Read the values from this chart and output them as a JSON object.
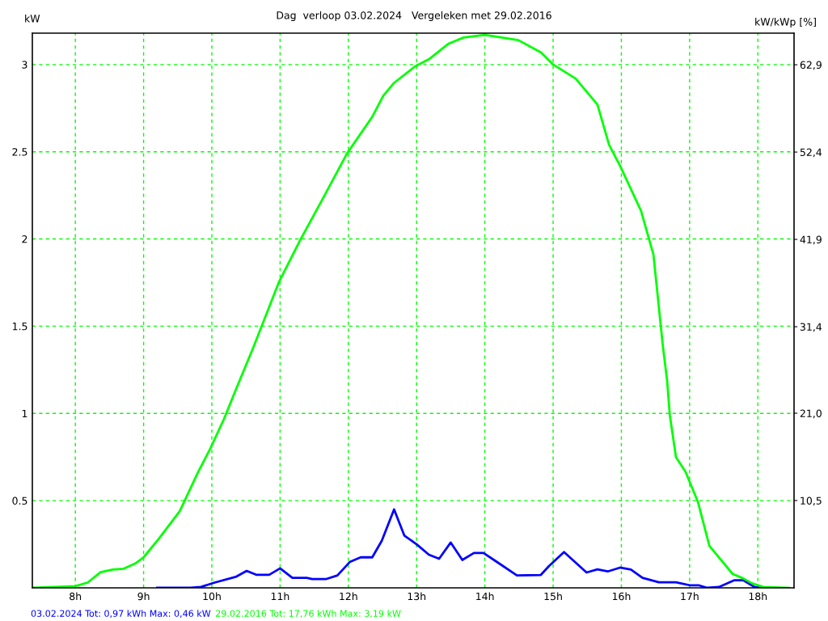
{
  "chart_data": {
    "type": "line",
    "title": "Dag  verloop 03.02.2024   Vergeleken met 29.02.2016",
    "ylabel": "kW",
    "y2label": "kW/kWp [%]",
    "series": [
      {
        "name": "03.02.2024 Tot: 0,97 kWh Max: 0,46 kW",
        "color": "#0000ff",
        "x": [
          9.2,
          9.69,
          9.84,
          10.04,
          10.35,
          10.51,
          10.65,
          10.84,
          11.0,
          11.18,
          11.39,
          11.47,
          11.67,
          11.84,
          12.02,
          12.18,
          12.35,
          12.49,
          12.67,
          12.82,
          13.0,
          13.18,
          13.33,
          13.5,
          13.67,
          13.84,
          13.98,
          14.16,
          14.47,
          14.82,
          14.94,
          15.16,
          15.49,
          15.65,
          15.8,
          15.98,
          16.14,
          16.31,
          16.55,
          16.8,
          17.0,
          17.14,
          17.26,
          17.43,
          17.65,
          17.79,
          17.95,
          18.07
        ],
        "values": [
          0,
          0,
          0.005,
          0.03,
          0.063,
          0.097,
          0.075,
          0.075,
          0.112,
          0.057,
          0.057,
          0.05,
          0.05,
          0.071,
          0.148,
          0.175,
          0.175,
          0.27,
          0.45,
          0.3,
          0.25,
          0.19,
          0.167,
          0.26,
          0.16,
          0.2,
          0.2,
          0.153,
          0.071,
          0.074,
          0.125,
          0.205,
          0.088,
          0.106,
          0.094,
          0.116,
          0.105,
          0.057,
          0.032,
          0.032,
          0.015,
          0.014,
          0,
          0.005,
          0.043,
          0.043,
          0.005,
          0
        ]
      },
      {
        "name": "29.02.2016 Tot: 17,76 kWh Max: 3,19 kW",
        "color": "#00ff00",
        "x": [
          7.37,
          7.71,
          8.0,
          8.18,
          8.37,
          8.55,
          8.71,
          8.88,
          9.0,
          9.22,
          9.53,
          9.8,
          9.98,
          10.18,
          10.35,
          10.61,
          10.98,
          11.29,
          11.61,
          11.98,
          12.35,
          12.51,
          12.67,
          12.98,
          13.18,
          13.47,
          13.69,
          14.0,
          14.49,
          14.82,
          15.0,
          15.33,
          15.65,
          15.82,
          15.98,
          16.29,
          16.47,
          16.61,
          16.67,
          16.71,
          16.8,
          16.94,
          17.12,
          17.29,
          17.63,
          17.78,
          17.92,
          18.08,
          18.46
        ],
        "values": [
          0,
          0.005,
          0.01,
          0.03,
          0.09,
          0.105,
          0.11,
          0.14,
          0.175,
          0.28,
          0.44,
          0.665,
          0.8,
          0.97,
          1.135,
          1.38,
          1.75,
          1.99,
          2.22,
          2.49,
          2.7,
          2.82,
          2.895,
          2.99,
          3.03,
          3.12,
          3.155,
          3.17,
          3.14,
          3.07,
          3.0,
          2.92,
          2.77,
          2.54,
          2.42,
          2.16,
          1.91,
          1.38,
          1.19,
          0.99,
          0.75,
          0.665,
          0.495,
          0.24,
          0.08,
          0.055,
          0.025,
          0.005,
          0
        ]
      }
    ],
    "xlim": [
      7.37,
      18.53
    ],
    "ylim": [
      0,
      3.18
    ],
    "y2lim": [
      0,
      66.7
    ],
    "xticks": [
      {
        "value": 8,
        "label": "8h"
      },
      {
        "value": 9,
        "label": "9h"
      },
      {
        "value": 10,
        "label": "10h"
      },
      {
        "value": 11,
        "label": "11h"
      },
      {
        "value": 12,
        "label": "12h"
      },
      {
        "value": 13,
        "label": "13h"
      },
      {
        "value": 14,
        "label": "14h"
      },
      {
        "value": 15,
        "label": "15h"
      },
      {
        "value": 16,
        "label": "16h"
      },
      {
        "value": 17,
        "label": "17h"
      },
      {
        "value": 18,
        "label": "18h"
      }
    ],
    "yticks": [
      0.5,
      1,
      1.5,
      2,
      2.5,
      3
    ],
    "y2ticks": [
      {
        "value": 10.5,
        "label": "10,5"
      },
      {
        "value": 21.0,
        "label": "21,0"
      },
      {
        "value": 31.4,
        "label": "31,4"
      },
      {
        "value": 41.9,
        "label": "41,9"
      },
      {
        "value": 52.4,
        "label": "52,4"
      },
      {
        "value": 62.9,
        "label": "62,9"
      }
    ],
    "grid": true,
    "legend": "bottom",
    "marker": "none",
    "line_style": "solid"
  }
}
